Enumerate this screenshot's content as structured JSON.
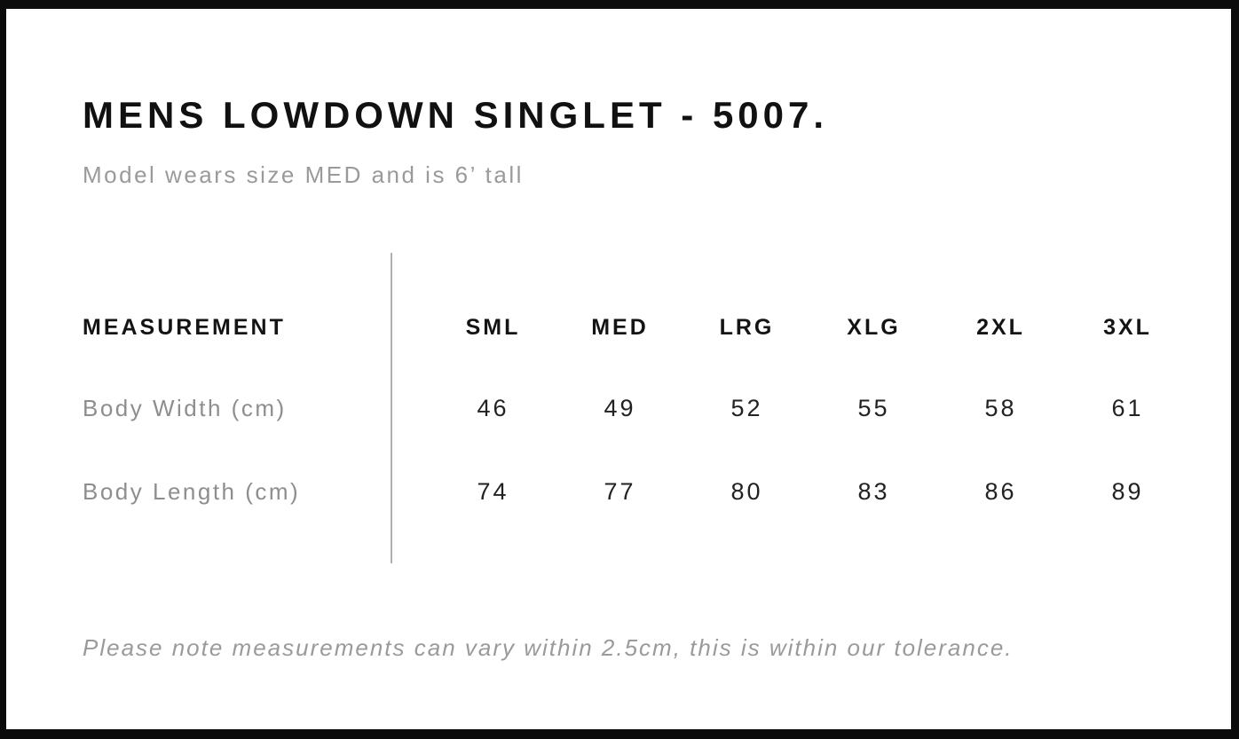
{
  "header": {
    "title": "MENS LOWDOWN SINGLET - 5007.",
    "subtitle": "Model wears size MED and is 6’ tall"
  },
  "table": {
    "measurement_label": "MEASUREMENT",
    "sizes": [
      "SML",
      "MED",
      "LRG",
      "XLG",
      "2XL",
      "3XL"
    ],
    "rows": [
      {
        "label": "Body Width (cm)",
        "values": [
          "46",
          "49",
          "52",
          "55",
          "58",
          "61"
        ]
      },
      {
        "label": "Body Length (cm)",
        "values": [
          "74",
          "77",
          "80",
          "83",
          "86",
          "89"
        ]
      }
    ]
  },
  "note": "Please note measurements can vary within 2.5cm, this is within our tolerance.",
  "colors": {
    "frame": "#0b0b0b",
    "title_text": "#111111",
    "muted_text": "#9a9a9a",
    "value_text": "#222222",
    "divider": "#b0b0b0"
  }
}
